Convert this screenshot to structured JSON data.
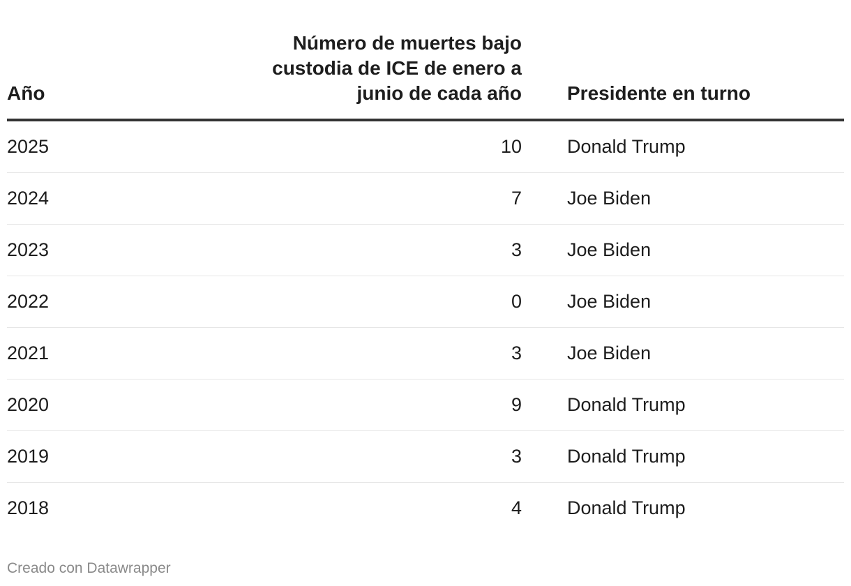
{
  "chart_data": {
    "type": "table",
    "columns": [
      "Año",
      "Número de muertes bajo custodia de ICE de enero a junio de cada año",
      "Presidente en turno"
    ],
    "rows": [
      {
        "year": "2025",
        "deaths": 10,
        "president": "Donald Trump"
      },
      {
        "year": "2024",
        "deaths": 7,
        "president": "Joe Biden"
      },
      {
        "year": "2023",
        "deaths": 3,
        "president": "Joe Biden"
      },
      {
        "year": "2022",
        "deaths": 0,
        "president": "Joe Biden"
      },
      {
        "year": "2021",
        "deaths": 3,
        "president": "Joe Biden"
      },
      {
        "year": "2020",
        "deaths": 9,
        "president": "Donald Trump"
      },
      {
        "year": "2019",
        "deaths": 3,
        "president": "Donald Trump"
      },
      {
        "year": "2018",
        "deaths": 4,
        "president": "Donald Trump"
      }
    ]
  },
  "header": {
    "year": "Año",
    "deaths_line1": "Número de muertes bajo",
    "deaths_line2": "custodia de ICE de enero a",
    "deaths_line3": "junio de cada año",
    "president": "Presidente en turno"
  },
  "footer": {
    "credit": "Creado con Datawrapper"
  },
  "colors": {
    "text": "#1d1d1d",
    "header_rule": "#333333",
    "row_rule": "#e6e6e6",
    "footer_text": "#8a8a8a"
  }
}
